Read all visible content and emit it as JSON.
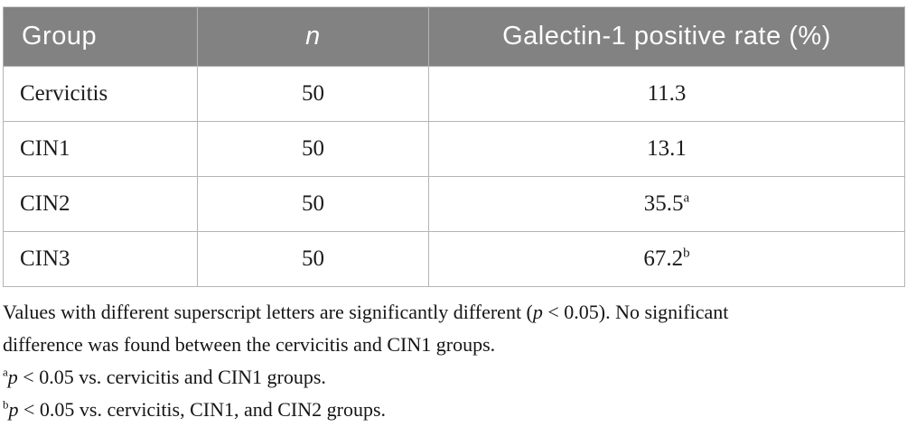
{
  "colors": {
    "header_background": "#828282",
    "header_text": "#fdfdfd",
    "grid_border": "#b5b5b5",
    "body_text": "#1b1b1b",
    "page_background": "#ffffff"
  },
  "table": {
    "header": {
      "col1": "Group",
      "col2": "n",
      "col3": "Galectin-1 positive rate (%)"
    },
    "rows": [
      {
        "group": "Cervicitis",
        "n": "50",
        "rate": "11.3",
        "rate_sup": ""
      },
      {
        "group": "CIN1",
        "n": "50",
        "rate": "13.1",
        "rate_sup": ""
      },
      {
        "group": "CIN2",
        "n": "50",
        "rate": "35.5",
        "rate_sup": "a"
      },
      {
        "group": "CIN3",
        "n": "50",
        "rate": "67.2",
        "rate_sup": "b"
      }
    ]
  },
  "footnotes": {
    "general": {
      "line1_pre": "Values with different superscript letters are significantly different (",
      "line1_italic": "p",
      "line1_post": " < 0.05). No significant",
      "line2": "difference was found between the cervicitis and CIN1 groups."
    },
    "note_a": {
      "sup": "a",
      "italic": "p",
      "text": " < 0.05 vs. cervicitis and CIN1 groups."
    },
    "note_b": {
      "sup": "b",
      "italic": "p",
      "text": " < 0.05 vs. cervicitis, CIN1, and CIN2 groups."
    }
  }
}
